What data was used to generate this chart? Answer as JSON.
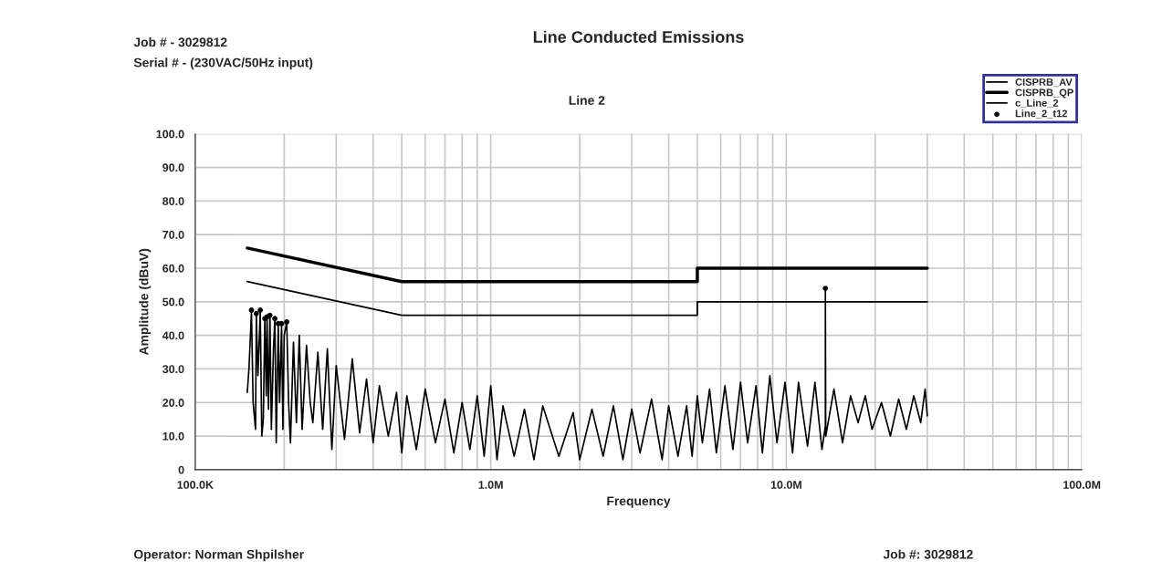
{
  "chart_data": {
    "type": "line",
    "title": "Line Conducted Emissions",
    "subtitle": "Line 2",
    "xlabel": "Frequency",
    "ylabel": "Amplitude (dBuV)",
    "annotations": [
      "Job # - 3029812",
      "Serial # - (230VAC/50Hz input)",
      "Operator: Norman Shpilsher",
      "Job #: 3029812"
    ],
    "log": "x",
    "grid": true,
    "legend": "top right",
    "xlim": [
      100000,
      100000000
    ],
    "xticks": [
      {
        "value": 100000,
        "label": "100.0K"
      },
      {
        "value": 200000,
        "label": null
      },
      {
        "value": 300000,
        "label": null
      },
      {
        "value": 400000,
        "label": null
      },
      {
        "value": 500000,
        "label": null
      },
      {
        "value": 600000,
        "label": null
      },
      {
        "value": 700000,
        "label": null
      },
      {
        "value": 800000,
        "label": null
      },
      {
        "value": 900000,
        "label": null
      },
      {
        "value": 1000000,
        "label": "1.0M"
      },
      {
        "value": 2000000,
        "label": null
      },
      {
        "value": 3000000,
        "label": null
      },
      {
        "value": 4000000,
        "label": null
      },
      {
        "value": 5000000,
        "label": null
      },
      {
        "value": 6000000,
        "label": null
      },
      {
        "value": 7000000,
        "label": null
      },
      {
        "value": 8000000,
        "label": null
      },
      {
        "value": 9000000,
        "label": null
      },
      {
        "value": 10000000,
        "label": "10.0M"
      },
      {
        "value": 20000000,
        "label": null
      },
      {
        "value": 30000000,
        "label": null
      },
      {
        "value": 40000000,
        "label": null
      },
      {
        "value": 50000000,
        "label": null
      },
      {
        "value": 60000000,
        "label": null
      },
      {
        "value": 70000000,
        "label": null
      },
      {
        "value": 80000000,
        "label": null
      },
      {
        "value": 90000000,
        "label": null
      },
      {
        "value": 100000000,
        "label": "100.0M"
      }
    ],
    "ylim": [
      0,
      100
    ],
    "yticks": [
      0,
      {
        "value": 10,
        "label": "10.0"
      },
      {
        "value": 20,
        "label": "20.0"
      },
      {
        "value": 30,
        "label": "30.0"
      },
      {
        "value": 40,
        "label": "40.0"
      },
      {
        "value": 50,
        "label": "50.0"
      },
      {
        "value": 60,
        "label": "60.0"
      },
      {
        "value": 70,
        "label": "70.0"
      },
      {
        "value": 80,
        "label": "80.0"
      },
      {
        "value": 90,
        "label": "90.0"
      },
      {
        "value": 100,
        "label": "100.0"
      }
    ],
    "series": [
      {
        "name": "CISPRB_AV",
        "color": "#000000",
        "x": [
          150000,
          500000,
          5000000,
          5000000,
          30000000
        ],
        "values": [
          56,
          46,
          46,
          50,
          50
        ]
      },
      {
        "name": "CISPRB_QP",
        "color": "#000000",
        "x": [
          150000,
          500000,
          5000000,
          5000000,
          30000000
        ],
        "values": [
          66,
          56,
          56,
          60,
          60
        ]
      },
      {
        "name": "c_Line_2",
        "color": "#000000",
        "x": [
          150000,
          152000,
          155000,
          157000,
          160000,
          161000,
          163000,
          166000,
          168000,
          170000,
          172000,
          174000,
          175000,
          177000,
          179000,
          181000,
          184000,
          186000,
          188000,
          191000,
          193000,
          196000,
          198000,
          200000,
          204000,
          207000,
          210000,
          215000,
          220000,
          225000,
          230000,
          238000,
          245000,
          250000,
          260000,
          270000,
          280000,
          290000,
          300000,
          320000,
          340000,
          360000,
          380000,
          400000,
          420000,
          450000,
          480000,
          500000,
          520000,
          560000,
          600000,
          650000,
          700000,
          750000,
          800000,
          850000,
          900000,
          950000,
          1000000,
          1050000,
          1100000,
          1200000,
          1300000,
          1400000,
          1500000,
          1700000,
          1900000,
          2000000,
          2200000,
          2400000,
          2600000,
          2800000,
          3000000,
          3200000,
          3500000,
          3800000,
          4000000,
          4300000,
          4600000,
          4800000,
          5000000,
          5200000,
          5500000,
          5800000,
          6200000,
          6600000,
          7000000,
          7400000,
          7900000,
          8300000,
          8800000,
          9300000,
          9900000,
          10500000,
          11000000,
          11800000,
          12500000,
          13200000,
          13560000,
          13560000,
          13600000,
          14500000,
          15500000,
          16500000,
          17500000,
          18500000,
          19500000,
          21000000,
          22500000,
          24000000,
          25500000,
          27000000,
          28500000,
          29500000,
          30000000
        ],
        "values": [
          23,
          30,
          47,
          20,
          12,
          46,
          28,
          47,
          10,
          15,
          45,
          22,
          46,
          18,
          46,
          12,
          36,
          45,
          8,
          43,
          20,
          43,
          12,
          40,
          44,
          20,
          8,
          38,
          14,
          40,
          12,
          37,
          20,
          14,
          35,
          12,
          36,
          6,
          31,
          9,
          33,
          11,
          27,
          8,
          25,
          10,
          23,
          5,
          22,
          6,
          24,
          8,
          21,
          5,
          20,
          6,
          22,
          4,
          25,
          3,
          19,
          4,
          18,
          3,
          19,
          4,
          17,
          3,
          18,
          4,
          19,
          3,
          18,
          5,
          21,
          3,
          19,
          4,
          19,
          4,
          22,
          8,
          24,
          5,
          25,
          6,
          26,
          8,
          25,
          5,
          28,
          8,
          26,
          5,
          26,
          7,
          26,
          6,
          13,
          54,
          10,
          24,
          8,
          22,
          14,
          22,
          12,
          20,
          10,
          21,
          12,
          22,
          14,
          24,
          16
        ]
      },
      {
        "name": "Line_2_t12",
        "type": "scatter",
        "marker": "circle",
        "color": "#000000",
        "x": [
          155000,
          161000,
          166000,
          172000,
          175000,
          179000,
          186000,
          191000,
          196000,
          204000,
          13560000
        ],
        "values": [
          47.5,
          46.5,
          47.5,
          45,
          45.5,
          46,
          45,
          43.5,
          43.5,
          44,
          54
        ]
      }
    ]
  }
}
